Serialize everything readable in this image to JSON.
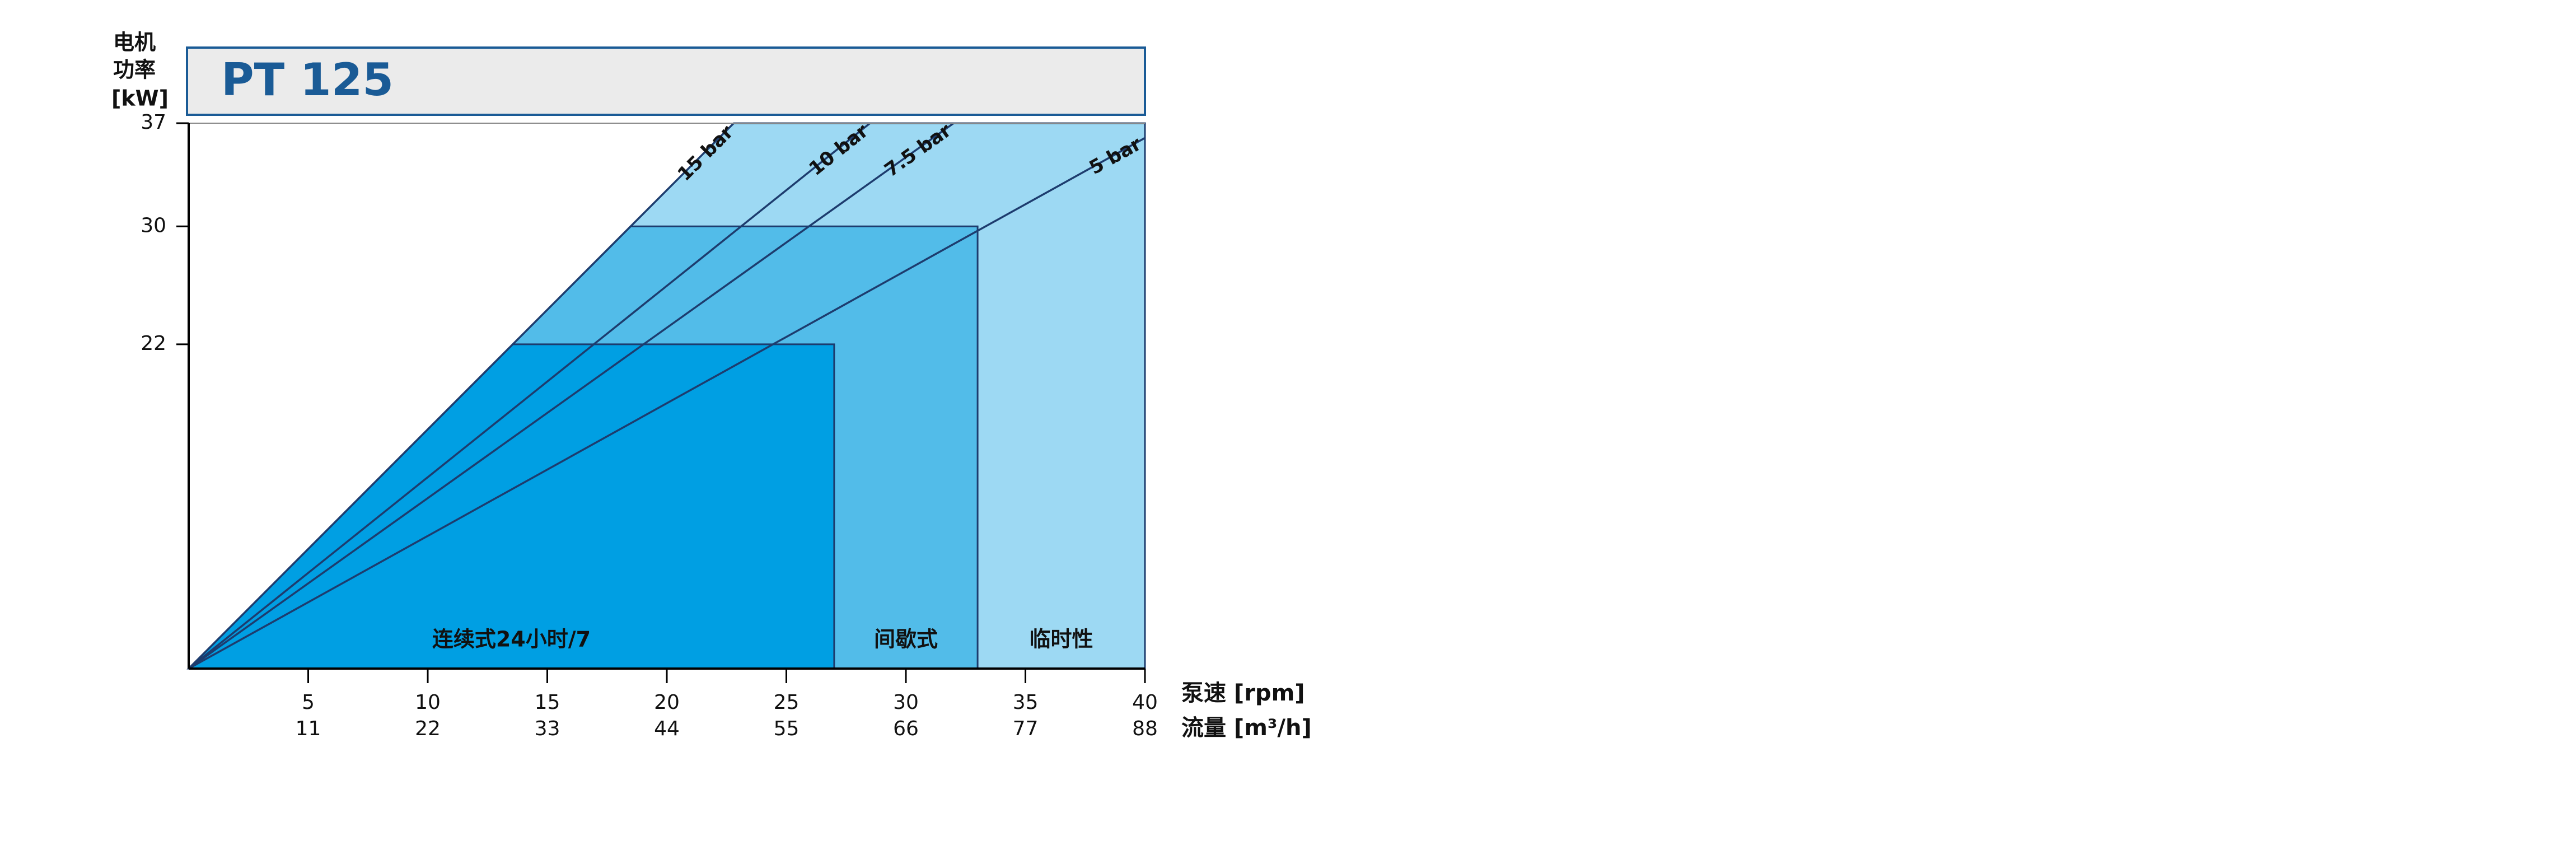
{
  "chart_data": {
    "type": "area",
    "title": "PT 125",
    "y_label": [
      "电机",
      "功率",
      "[kW]"
    ],
    "x_label": "泵速 [rpm]",
    "x2_label": "流量 [m³/h]",
    "xlim": [
      0,
      40
    ],
    "ylim": [
      0,
      37
    ],
    "xticks": [
      5,
      10,
      15,
      20,
      25,
      30,
      35,
      40
    ],
    "x2ticks": [
      11,
      22,
      33,
      44,
      55,
      66,
      77,
      88
    ],
    "yticks": [
      22,
      30,
      37
    ],
    "regions": [
      {
        "name": "临时性",
        "x_max": 40,
        "power": 37,
        "color": "#9dd9f3"
      },
      {
        "name": "间歇式",
        "x_max": 33,
        "power": 30,
        "color": "#52bce9"
      },
      {
        "name": "连续式24小时/7",
        "x_max": 27,
        "power": 22,
        "color": "#009fe3"
      }
    ],
    "pressure_lines": [
      {
        "name": "15 bar",
        "x": [
          0,
          22.8
        ],
        "y": [
          0,
          37
        ]
      },
      {
        "name": "10 bar",
        "x": [
          0,
          28.5
        ],
        "y": [
          0,
          37
        ]
      },
      {
        "name": "7.5 bar",
        "x": [
          0,
          32
        ],
        "y": [
          0,
          37
        ]
      },
      {
        "name": "5 bar",
        "x": [
          0,
          40
        ],
        "y": [
          0,
          36
        ]
      }
    ],
    "line_color": "#1d3c6e",
    "title_color": "#1a5b96"
  }
}
